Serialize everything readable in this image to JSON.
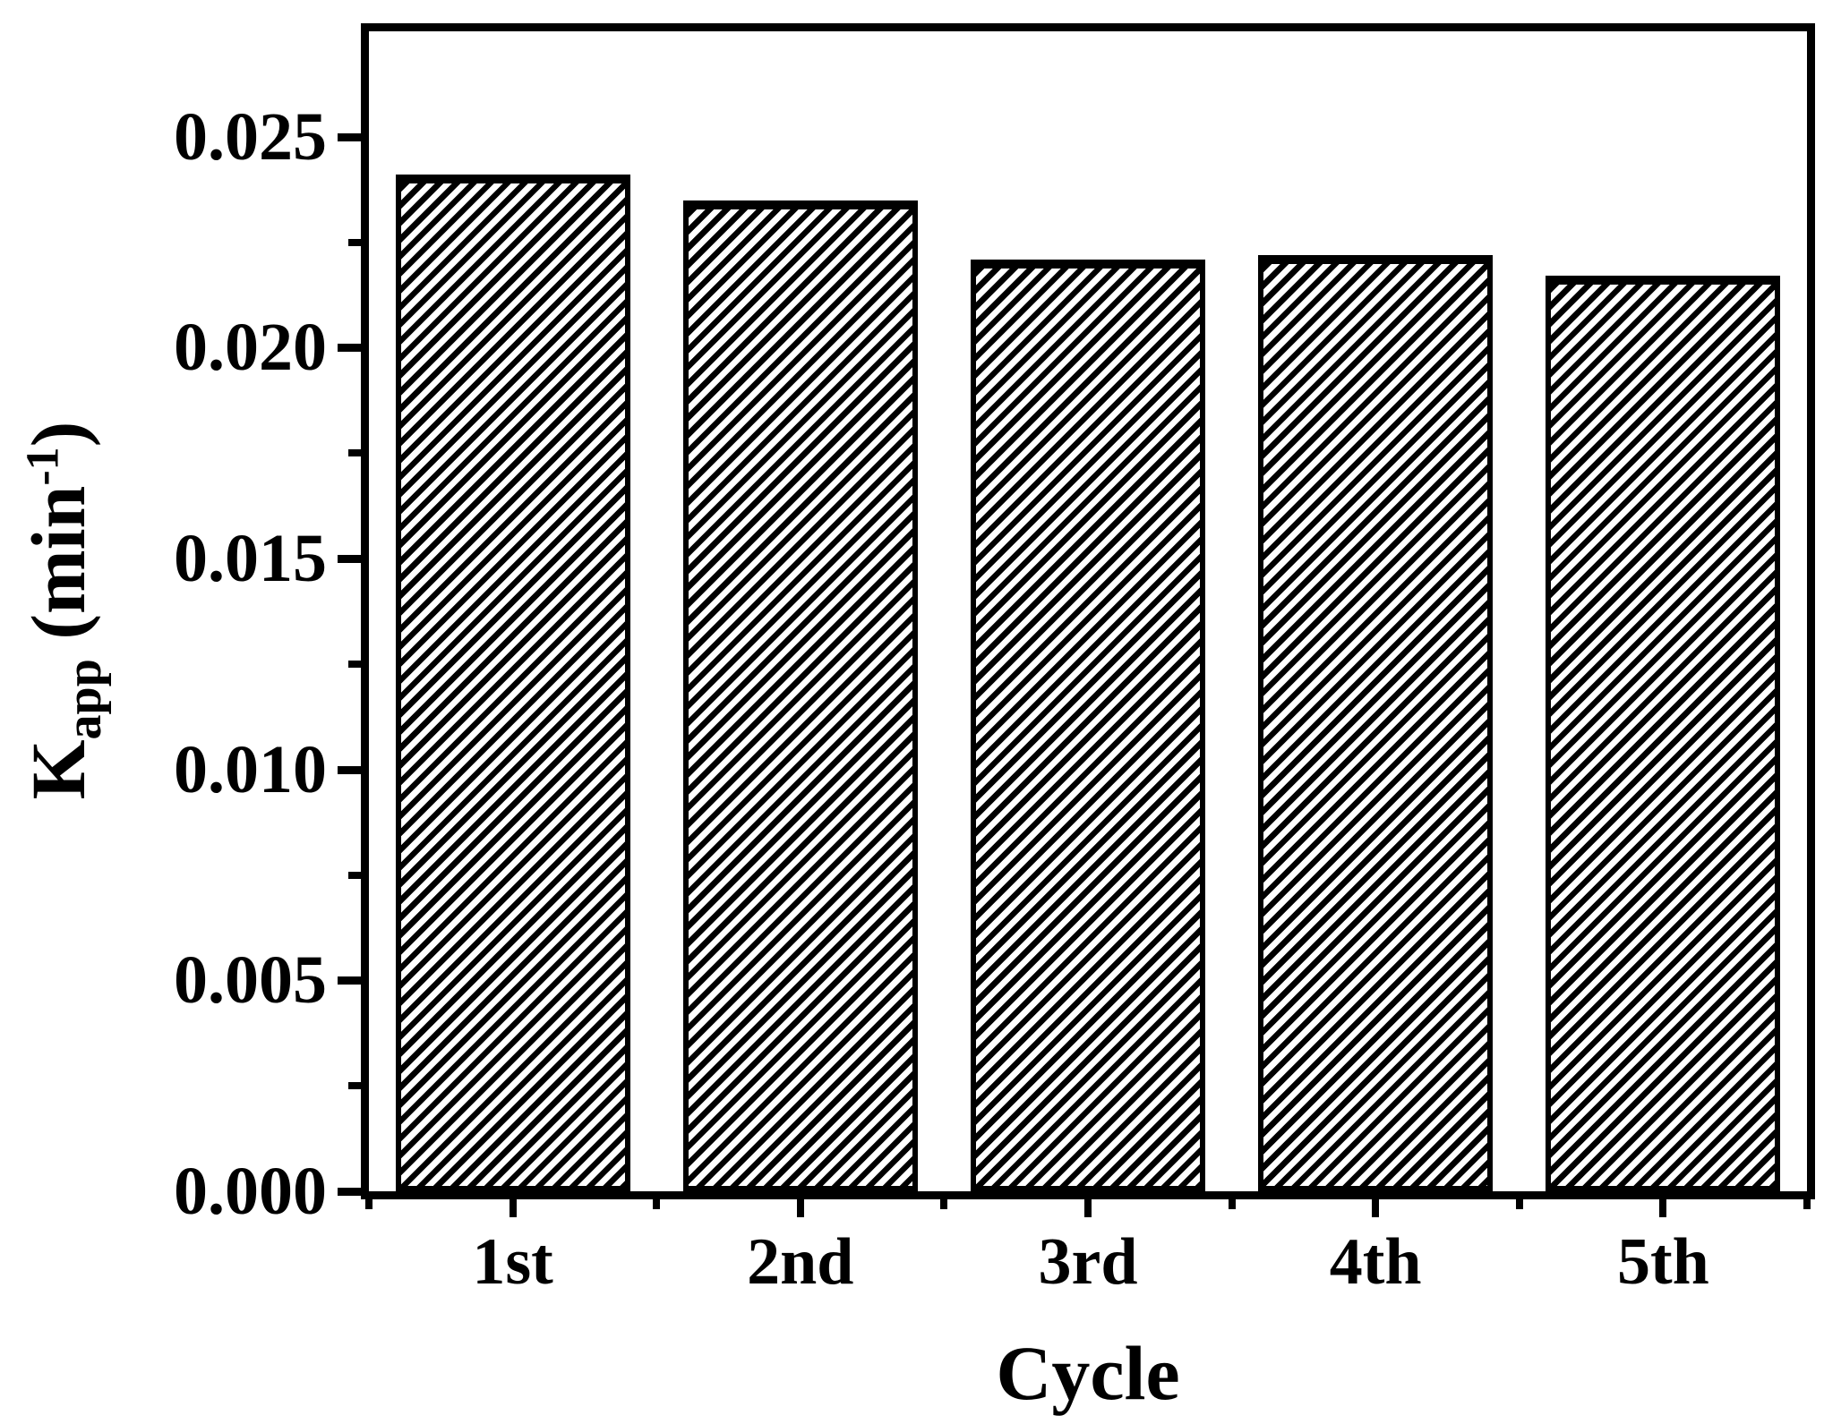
{
  "chart_data": {
    "type": "bar",
    "title": "",
    "categories": [
      "1st",
      "2nd",
      "3rd",
      "4th",
      "5th"
    ],
    "values": [
      0.0241,
      0.0235,
      0.0221,
      0.0222,
      0.0217
    ],
    "xlabel": "Cycle",
    "ylabel": "K_app (min^-1)",
    "ylabel_parts": {
      "base": "K",
      "sub": "app",
      "rest": " (min",
      "sup": "-1",
      "close": ")"
    },
    "ylim": [
      0,
      0.0275
    ],
    "y_ticks": [
      {
        "value": 0.0,
        "label": "0.000"
      },
      {
        "value": 0.005,
        "label": "0.005"
      },
      {
        "value": 0.01,
        "label": "0.010"
      },
      {
        "value": 0.015,
        "label": "0.015"
      },
      {
        "value": 0.02,
        "label": "0.020"
      },
      {
        "value": 0.025,
        "label": "0.025"
      }
    ],
    "y_minor_ticks": [
      0.0025,
      0.0075,
      0.0125,
      0.0175,
      0.0225
    ],
    "grid": false,
    "legend": null,
    "bar_fill": "#ffffff",
    "bar_hatch": "forward-diagonal",
    "axis_color": "#000000",
    "background": "#ffffff"
  }
}
